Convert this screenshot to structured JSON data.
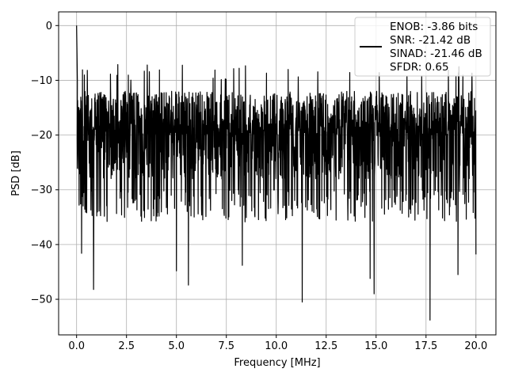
{
  "chart_data": {
    "type": "line",
    "title": "",
    "xlabel": "Frequency [MHz]",
    "ylabel": "PSD [dB]",
    "xlim": [
      -0.9,
      21.0
    ],
    "ylim": [
      -56.5,
      2.5
    ],
    "xticks": [
      0.0,
      2.5,
      5.0,
      7.5,
      10.0,
      12.5,
      15.0,
      17.5,
      20.0
    ],
    "xtick_labels": [
      "0.0",
      "2.5",
      "5.0",
      "7.5",
      "10.0",
      "12.5",
      "15.0",
      "17.5",
      "20.0"
    ],
    "yticks": [
      0,
      -10,
      -20,
      -30,
      -40,
      -50
    ],
    "ytick_labels": [
      "0",
      "−10",
      "−20",
      "−30",
      "−40",
      "−50"
    ],
    "grid": true,
    "legend_position": "top-right",
    "series": [
      {
        "color": "#000000",
        "description": "dense noise PSD trace, mostly between -10 and -30 dB, peak 0 dB near 0 MHz",
        "x_range": [
          0.0,
          20.0
        ],
        "peak": {
          "x": 0.0,
          "y": 0.0
        },
        "typical_band": [
          -30,
          -10
        ],
        "notable_minima": [
          {
            "x": 0.25,
            "y": -41.6
          },
          {
            "x": 0.85,
            "y": -48.2
          },
          {
            "x": 5.0,
            "y": -44.8
          },
          {
            "x": 5.6,
            "y": -47.4
          },
          {
            "x": 8.3,
            "y": -43.8
          },
          {
            "x": 11.3,
            "y": -50.5
          },
          {
            "x": 14.7,
            "y": -46.2
          },
          {
            "x": 14.9,
            "y": -49.0
          },
          {
            "x": 17.7,
            "y": -53.8
          },
          {
            "x": 19.1,
            "y": -45.5
          },
          {
            "x": 20.0,
            "y": -41.8
          }
        ]
      }
    ],
    "legend": {
      "lines": [
        "ENOB: -3.86 bits",
        "SNR: -21.42 dB",
        "SINAD: -21.46 dB",
        "SFDR: 0.65"
      ]
    }
  }
}
